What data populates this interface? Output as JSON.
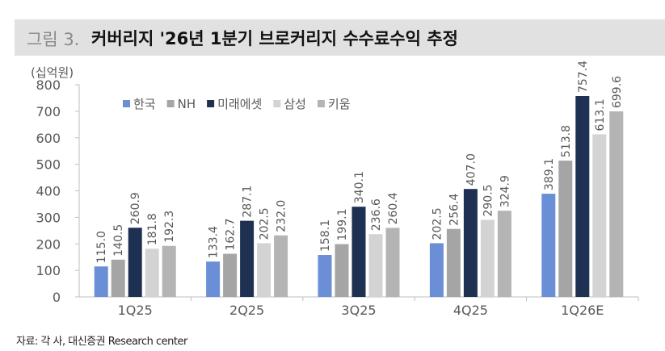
{
  "header": {
    "figure_number": "그림 3.",
    "title": "커버리지 '26년 1분기 브로커리지 수수료수익 추정"
  },
  "source": "자료: 각 사, 대신증권 Research center",
  "chart_data": {
    "type": "bar",
    "title": "커버리지 '26년 1분기 브로커리지 수수료수익 추정",
    "ylabel": "(십억원)",
    "xlabel": "",
    "ylim": [
      0,
      800
    ],
    "yticks": [
      0,
      100,
      200,
      300,
      400,
      500,
      600,
      700,
      800
    ],
    "grid": false,
    "legend_position": "top-left",
    "categories": [
      "1Q25",
      "2Q25",
      "3Q25",
      "4Q25",
      "1Q26E"
    ],
    "series": [
      {
        "name": "한국",
        "color": "#6a8fd6",
        "values": [
          115.0,
          133.4,
          158.1,
          202.5,
          389.1
        ]
      },
      {
        "name": "NH",
        "color": "#a5a5a5",
        "values": [
          140.5,
          162.7,
          199.1,
          256.4,
          513.8
        ]
      },
      {
        "name": "미래에셋",
        "color": "#1f3152",
        "values": [
          260.9,
          287.1,
          340.1,
          407.0,
          757.4
        ]
      },
      {
        "name": "삼성",
        "color": "#d3d3d3",
        "values": [
          181.8,
          202.5,
          236.6,
          290.5,
          613.1
        ]
      },
      {
        "name": "키움",
        "color": "#b4b4b4",
        "values": [
          192.3,
          232.0,
          260.4,
          324.9,
          699.6
        ]
      }
    ]
  }
}
